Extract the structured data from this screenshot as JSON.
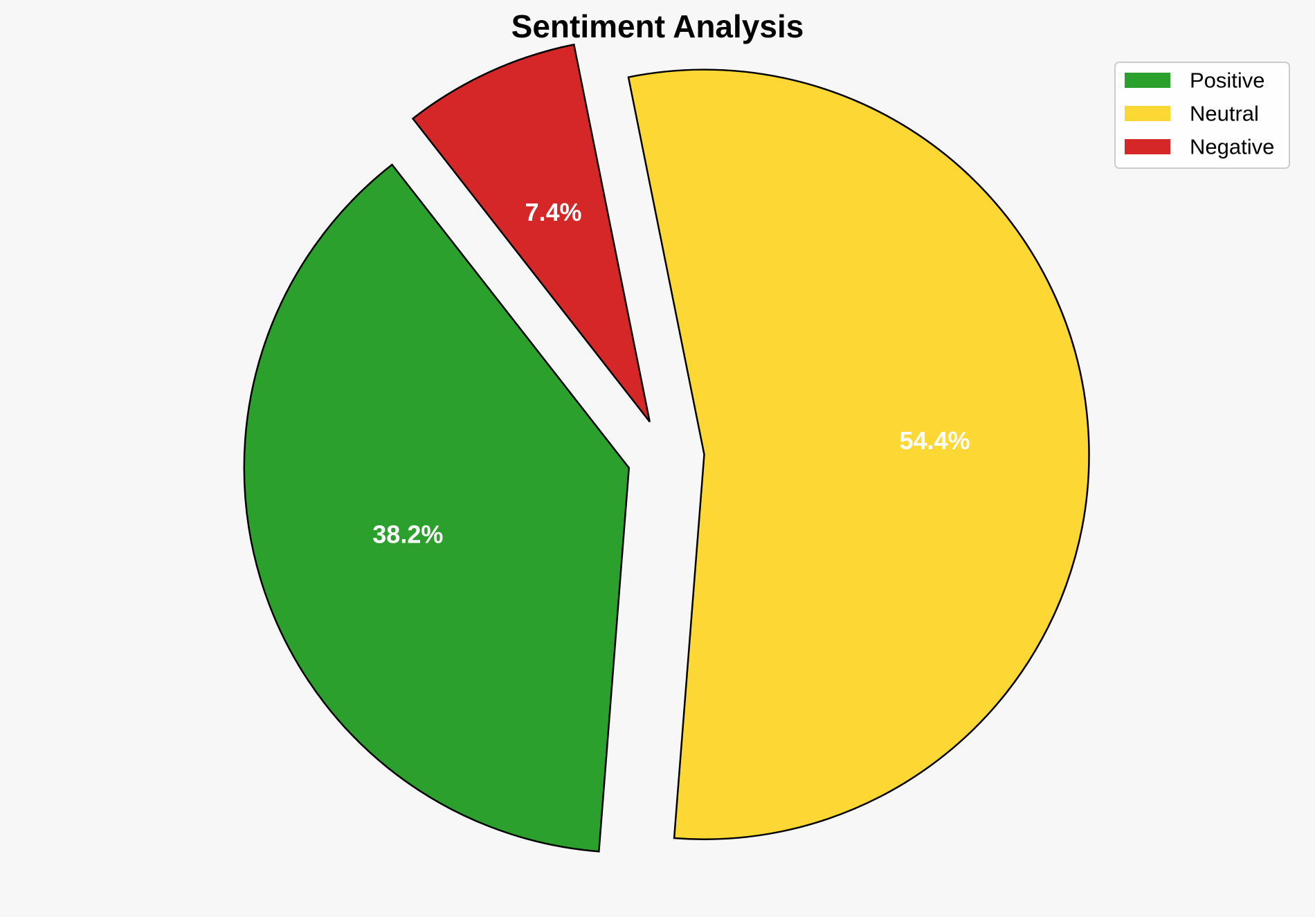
{
  "chart_data": {
    "type": "pie",
    "title": "Sentiment Analysis",
    "categories": [
      "Positive",
      "Neutral",
      "Negative"
    ],
    "values": [
      38.2,
      54.4,
      7.4
    ],
    "labels": [
      "38.2%",
      "54.4%",
      "7.4%"
    ],
    "colors": [
      "#2ca02c",
      "#fdd835",
      "#d62728"
    ],
    "exploded": true,
    "legend_position": "top-right"
  }
}
